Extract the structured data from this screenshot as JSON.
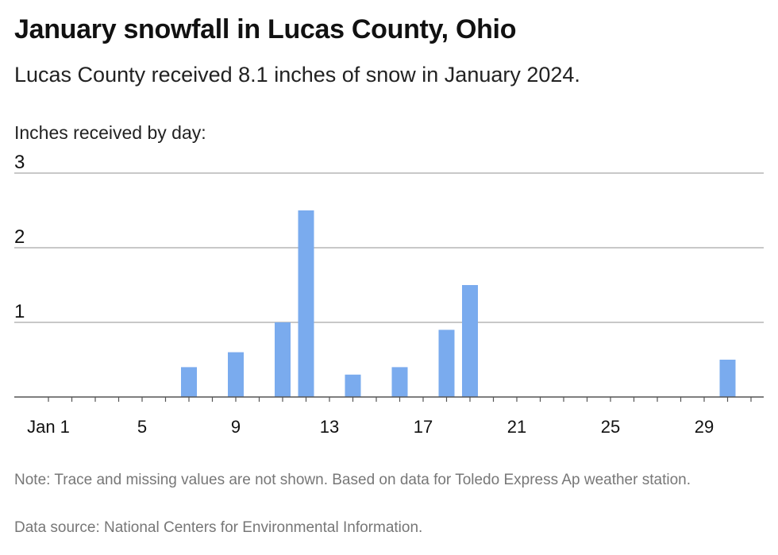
{
  "header": {
    "title": "January snowfall in Lucas County, Ohio",
    "subtitle": "Lucas County received 8.1 inches of snow in January 2024.",
    "axis_label": "Inches received by day:"
  },
  "footer": {
    "note": "Note: Trace and missing values are not shown. Based on data for Toledo Express Ap weather station.",
    "source": "Data source: National Centers for Environmental Information."
  },
  "colors": {
    "bar": "#7aabee",
    "grid": "#b5b5b5",
    "axis": "#555555"
  },
  "chart_data": {
    "type": "bar",
    "title": "January snowfall in Lucas County, Ohio",
    "subtitle": "Lucas County received 8.1 inches of snow in January 2024.",
    "ylabel": "Inches received by day:",
    "xlabel": "",
    "x_domain": [
      1,
      31
    ],
    "ylim": [
      0,
      3
    ],
    "y_ticks": [
      1,
      2,
      3
    ],
    "x_ticks": [
      {
        "day": 1,
        "label": "Jan 1"
      },
      {
        "day": 5,
        "label": "5"
      },
      {
        "day": 9,
        "label": "9"
      },
      {
        "day": 13,
        "label": "13"
      },
      {
        "day": 17,
        "label": "17"
      },
      {
        "day": 21,
        "label": "21"
      },
      {
        "day": 25,
        "label": "25"
      },
      {
        "day": 29,
        "label": "29"
      }
    ],
    "grid": true,
    "legend": "none",
    "points": [
      {
        "day": 7,
        "value": 0.4
      },
      {
        "day": 9,
        "value": 0.6
      },
      {
        "day": 11,
        "value": 1.0
      },
      {
        "day": 12,
        "value": 2.5
      },
      {
        "day": 14,
        "value": 0.3
      },
      {
        "day": 16,
        "value": 0.4
      },
      {
        "day": 18,
        "value": 0.9
      },
      {
        "day": 19,
        "value": 1.5
      },
      {
        "day": 30,
        "value": 0.5
      }
    ]
  }
}
